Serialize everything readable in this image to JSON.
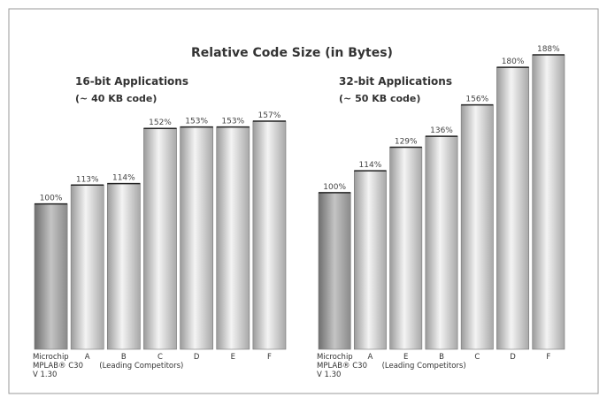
{
  "title": "Relative Code Size (in Bytes)",
  "chart_data": [
    {
      "type": "bar",
      "title": "16-bit Applications",
      "subtitle": "(~ 40 KB code)",
      "categories": [
        "Microchip\nMPLAB® C30\nV 1.30",
        "A",
        "B",
        "C",
        "D",
        "E",
        "F"
      ],
      "values": [
        100,
        113,
        114,
        152,
        153,
        153,
        157
      ],
      "value_labels": [
        "100%",
        "113%",
        "114%",
        "152%",
        "153%",
        "153%",
        "157%"
      ],
      "note": "(Leading Competitors)"
    },
    {
      "type": "bar",
      "title": "32-bit Applications",
      "subtitle": "(~ 50 KB code)",
      "categories": [
        "Microchip\nMPLAB® C30\nV 1.30",
        "A",
        "E",
        "B",
        "C",
        "D",
        "F"
      ],
      "values": [
        100,
        114,
        129,
        136,
        156,
        180,
        188
      ],
      "value_labels": [
        "100%",
        "114%",
        "129%",
        "136%",
        "156%",
        "180%",
        "188%"
      ],
      "note": "(Leading Competitors)"
    }
  ]
}
